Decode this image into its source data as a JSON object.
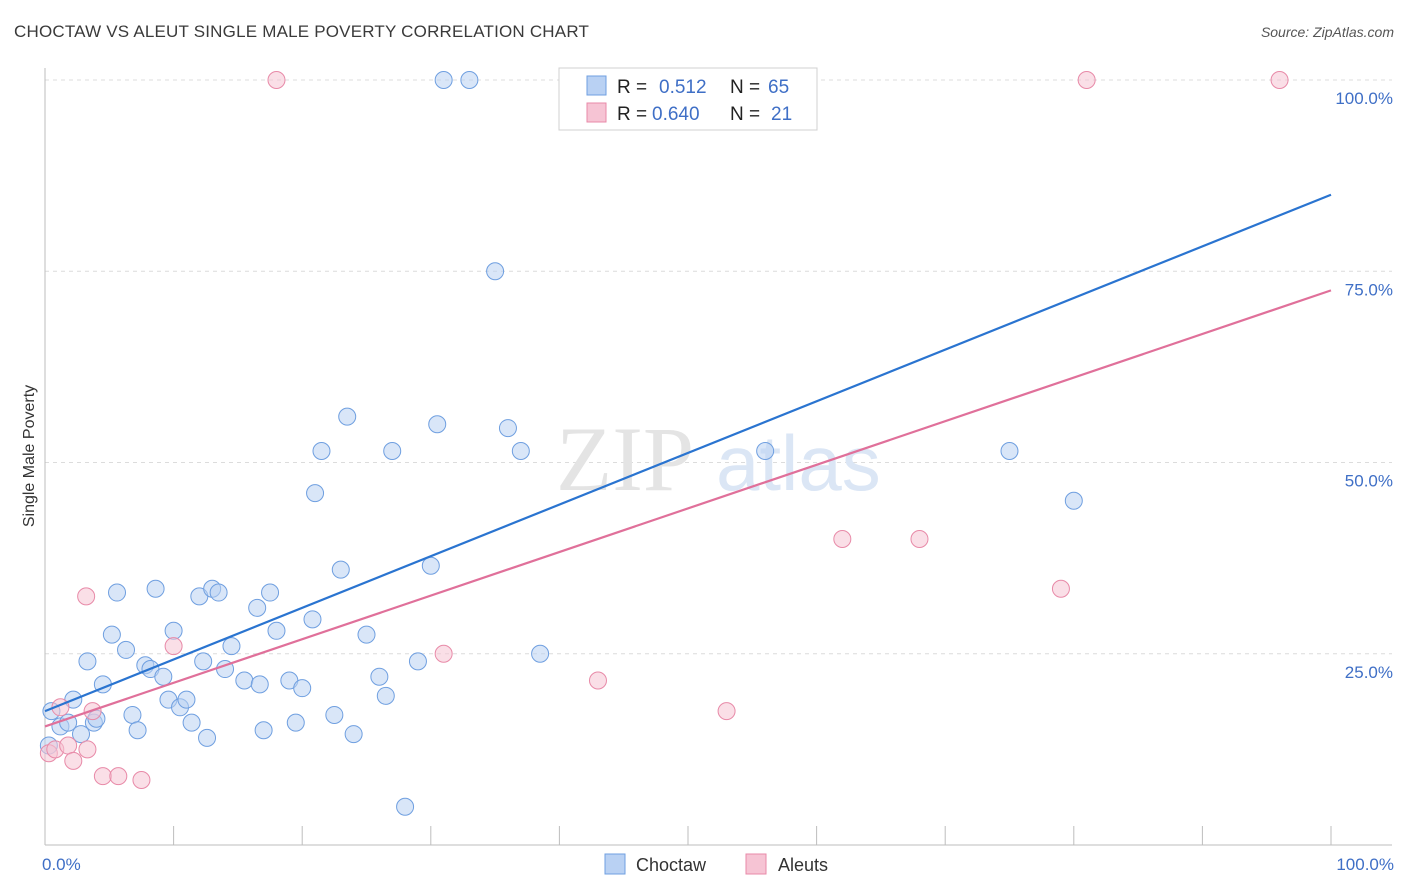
{
  "title": "CHOCTAW VS ALEUT SINGLE MALE POVERTY CORRELATION CHART",
  "source": "Source: ZipAtlas.com",
  "watermark": {
    "zip": "ZIP",
    "atlas": "atlas"
  },
  "chart_data": {
    "type": "scatter",
    "ylabel": "Single Male Poverty",
    "xlim": [
      0,
      100
    ],
    "ylim": [
      0,
      100
    ],
    "x_ticks": [
      {
        "value": 0,
        "label": "0.0%"
      },
      {
        "value": 100,
        "label": "100.0%"
      }
    ],
    "y_ticks": [
      {
        "value": 25,
        "label": "25.0%"
      },
      {
        "value": 50,
        "label": "50.0%"
      },
      {
        "value": 75,
        "label": "75.0%"
      },
      {
        "value": 100,
        "label": "100.0%"
      }
    ],
    "grid": true,
    "legend_position": "top-center",
    "series": [
      {
        "name": "Choctaw",
        "color": "#6f9fe0",
        "fill": "#b9d1f3",
        "line_color": "#2a74d0",
        "R": "0.512",
        "N": "65",
        "trend": {
          "x0": 0,
          "y0": 17.5,
          "x1": 100,
          "y1": 85
        },
        "points": [
          [
            0.3,
            13
          ],
          [
            0.5,
            17.5
          ],
          [
            1.2,
            15.5
          ],
          [
            1.8,
            16
          ],
          [
            2.2,
            19
          ],
          [
            2.8,
            14.5
          ],
          [
            3.3,
            24
          ],
          [
            3.8,
            16
          ],
          [
            4,
            16.5
          ],
          [
            4.5,
            21
          ],
          [
            5.2,
            27.5
          ],
          [
            5.6,
            33
          ],
          [
            6.3,
            25.5
          ],
          [
            6.8,
            17
          ],
          [
            7.2,
            15
          ],
          [
            7.8,
            23.5
          ],
          [
            8.2,
            23
          ],
          [
            8.6,
            33.5
          ],
          [
            9.2,
            22
          ],
          [
            9.6,
            19
          ],
          [
            10,
            28
          ],
          [
            10.5,
            18
          ],
          [
            11,
            19
          ],
          [
            11.4,
            16
          ],
          [
            12,
            32.5
          ],
          [
            12.3,
            24
          ],
          [
            12.6,
            14
          ],
          [
            13,
            33.5
          ],
          [
            13.5,
            33
          ],
          [
            14,
            23
          ],
          [
            14.5,
            26
          ],
          [
            15.5,
            21.5
          ],
          [
            16.5,
            31
          ],
          [
            16.7,
            21
          ],
          [
            17,
            15
          ],
          [
            17.5,
            33
          ],
          [
            18,
            28
          ],
          [
            19,
            21.5
          ],
          [
            19.5,
            16
          ],
          [
            20,
            20.5
          ],
          [
            20.8,
            29.5
          ],
          [
            21,
            46
          ],
          [
            21.5,
            51.5
          ],
          [
            22.5,
            17
          ],
          [
            23,
            36
          ],
          [
            23.5,
            56
          ],
          [
            24,
            14.5
          ],
          [
            25,
            27.5
          ],
          [
            26,
            22
          ],
          [
            26.5,
            19.5
          ],
          [
            27,
            51.5
          ],
          [
            28,
            5
          ],
          [
            29,
            24
          ],
          [
            30,
            36.5
          ],
          [
            30.5,
            55
          ],
          [
            31,
            100
          ],
          [
            33,
            100
          ],
          [
            35,
            75
          ],
          [
            36,
            54.5
          ],
          [
            37,
            51.5
          ],
          [
            38.5,
            25
          ],
          [
            45,
            100
          ],
          [
            56,
            51.5
          ],
          [
            75,
            51.5
          ],
          [
            80,
            45
          ]
        ]
      },
      {
        "name": "Aleuts",
        "color": "#e88aa8",
        "fill": "#f6c4d4",
        "line_color": "#e0709a",
        "R": "0.640",
        "N": "21",
        "trend": {
          "x0": 0,
          "y0": 15.5,
          "x1": 100,
          "y1": 72.5
        },
        "points": [
          [
            0.3,
            12
          ],
          [
            0.8,
            12.5
          ],
          [
            1.2,
            18
          ],
          [
            1.8,
            13
          ],
          [
            2.2,
            11
          ],
          [
            3.3,
            12.5
          ],
          [
            3.2,
            32.5
          ],
          [
            3.7,
            17.5
          ],
          [
            4.5,
            9
          ],
          [
            5.7,
            9
          ],
          [
            7.5,
            8.5
          ],
          [
            10,
            26
          ],
          [
            18,
            100
          ],
          [
            31,
            25
          ],
          [
            43,
            21.5
          ],
          [
            53,
            17.5
          ],
          [
            62,
            40
          ],
          [
            68,
            40
          ],
          [
            79,
            33.5
          ],
          [
            81,
            100
          ],
          [
            96,
            100
          ]
        ]
      }
    ]
  }
}
